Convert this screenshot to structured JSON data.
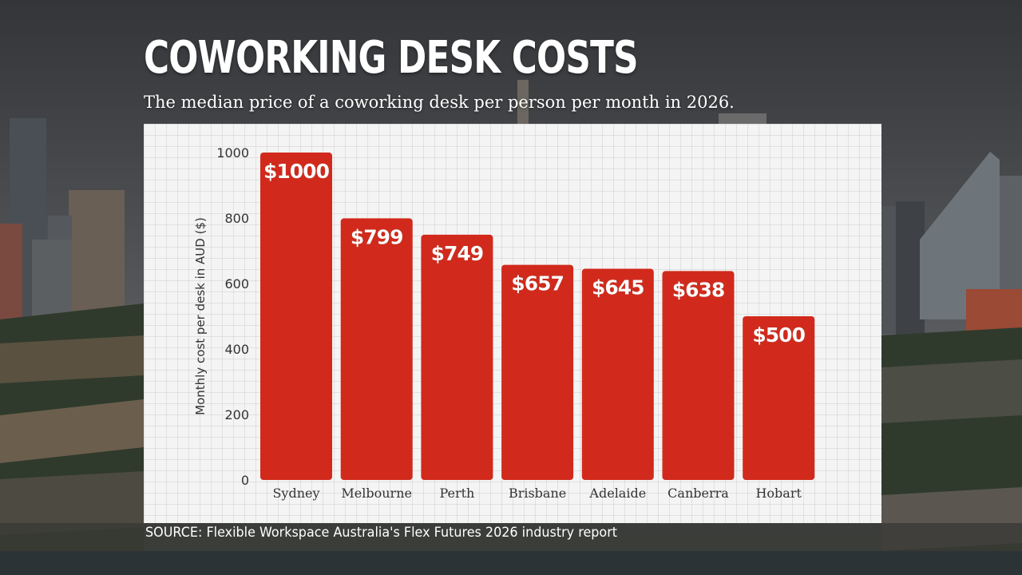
{
  "header": {
    "title": "COWORKING DESK COSTS",
    "subtitle": "The median price of a coworking desk per person per month in 2026."
  },
  "footer": {
    "source": "SOURCE: Flexible Workspace Australia's Flex Futures 2026 industry report"
  },
  "colors": {
    "bar": "#d12a1c",
    "panel": "#f4f4f4",
    "text": "#333333"
  },
  "chart_data": {
    "type": "bar",
    "title": "COWORKING DESK COSTS",
    "subtitle": "The median price of a coworking desk per person per month in 2026.",
    "xlabel": "",
    "ylabel": "Monthly cost per desk in AUD ($)",
    "categories": [
      "Sydney",
      "Melbourne",
      "Perth",
      "Brisbane",
      "Adelaide",
      "Canberra",
      "Hobart"
    ],
    "values": [
      1000,
      799,
      749,
      657,
      645,
      638,
      500
    ],
    "data_labels": [
      "$1000",
      "$799",
      "$749",
      "$657",
      "$645",
      "$638",
      "$500"
    ],
    "ylim": [
      0,
      1000
    ],
    "yticks": [
      0,
      200,
      400,
      600,
      800,
      1000
    ],
    "grid": false,
    "legend": "none"
  }
}
